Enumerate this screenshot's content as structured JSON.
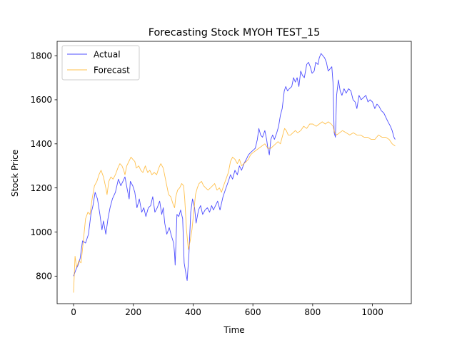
{
  "chart_data": {
    "type": "line",
    "title": "Forecasting Stock MYOH TEST_15",
    "xlabel": "Time",
    "ylabel": "Stock Price",
    "xlim": [
      -55,
      1130
    ],
    "ylim": [
      675,
      1865
    ],
    "xticks": [
      0,
      200,
      400,
      600,
      800,
      1000
    ],
    "yticks": [
      800,
      1000,
      1200,
      1400,
      1600,
      1800
    ],
    "grid": false,
    "legend": "upper left",
    "series": [
      {
        "name": "Actual",
        "color": "#0000ff",
        "points": [
          [
            0,
            800
          ],
          [
            8,
            830
          ],
          [
            15,
            850
          ],
          [
            22,
            880
          ],
          [
            30,
            960
          ],
          [
            40,
            950
          ],
          [
            50,
            990
          ],
          [
            58,
            1080
          ],
          [
            65,
            1120
          ],
          [
            72,
            1180
          ],
          [
            80,
            1150
          ],
          [
            88,
            1080
          ],
          [
            95,
            1010
          ],
          [
            100,
            1050
          ],
          [
            108,
            990
          ],
          [
            115,
            1060
          ],
          [
            122,
            1110
          ],
          [
            130,
            1150
          ],
          [
            140,
            1180
          ],
          [
            150,
            1240
          ],
          [
            158,
            1210
          ],
          [
            165,
            1230
          ],
          [
            172,
            1250
          ],
          [
            180,
            1190
          ],
          [
            186,
            1150
          ],
          [
            190,
            1230
          ],
          [
            198,
            1210
          ],
          [
            205,
            1180
          ],
          [
            212,
            1110
          ],
          [
            220,
            1150
          ],
          [
            228,
            1090
          ],
          [
            235,
            1110
          ],
          [
            242,
            1070
          ],
          [
            250,
            1110
          ],
          [
            258,
            1120
          ],
          [
            265,
            1160
          ],
          [
            272,
            1090
          ],
          [
            280,
            1110
          ],
          [
            288,
            1140
          ],
          [
            295,
            1080
          ],
          [
            300,
            1110
          ],
          [
            305,
            1040
          ],
          [
            312,
            990
          ],
          [
            320,
            1020
          ],
          [
            328,
            980
          ],
          [
            335,
            950
          ],
          [
            338,
            900
          ],
          [
            340,
            850
          ],
          [
            346,
            1080
          ],
          [
            352,
            1070
          ],
          [
            358,
            1100
          ],
          [
            365,
            1060
          ],
          [
            370,
            860
          ],
          [
            376,
            810
          ],
          [
            380,
            780
          ],
          [
            386,
            900
          ],
          [
            392,
            1090
          ],
          [
            398,
            1150
          ],
          [
            405,
            1110
          ],
          [
            410,
            1040
          ],
          [
            418,
            1100
          ],
          [
            425,
            1120
          ],
          [
            432,
            1080
          ],
          [
            440,
            1100
          ],
          [
            448,
            1110
          ],
          [
            455,
            1090
          ],
          [
            462,
            1120
          ],
          [
            468,
            1100
          ],
          [
            475,
            1120
          ],
          [
            482,
            1140
          ],
          [
            490,
            1100
          ],
          [
            500,
            1160
          ],
          [
            510,
            1200
          ],
          [
            518,
            1230
          ],
          [
            525,
            1260
          ],
          [
            532,
            1240
          ],
          [
            540,
            1280
          ],
          [
            548,
            1260
          ],
          [
            555,
            1300
          ],
          [
            562,
            1280
          ],
          [
            570,
            1310
          ],
          [
            578,
            1330
          ],
          [
            585,
            1350
          ],
          [
            592,
            1360
          ],
          [
            600,
            1370
          ],
          [
            608,
            1380
          ],
          [
            615,
            1420
          ],
          [
            620,
            1470
          ],
          [
            626,
            1440
          ],
          [
            632,
            1430
          ],
          [
            640,
            1460
          ],
          [
            646,
            1420
          ],
          [
            650,
            1380
          ],
          [
            655,
            1350
          ],
          [
            660,
            1420
          ],
          [
            666,
            1440
          ],
          [
            672,
            1420
          ],
          [
            680,
            1450
          ],
          [
            686,
            1480
          ],
          [
            692,
            1530
          ],
          [
            698,
            1560
          ],
          [
            705,
            1640
          ],
          [
            710,
            1660
          ],
          [
            716,
            1640
          ],
          [
            722,
            1650
          ],
          [
            730,
            1660
          ],
          [
            736,
            1700
          ],
          [
            742,
            1680
          ],
          [
            748,
            1700
          ],
          [
            754,
            1660
          ],
          [
            760,
            1730
          ],
          [
            766,
            1710
          ],
          [
            772,
            1700
          ],
          [
            780,
            1760
          ],
          [
            786,
            1770
          ],
          [
            792,
            1750
          ],
          [
            798,
            1720
          ],
          [
            805,
            1730
          ],
          [
            810,
            1770
          ],
          [
            818,
            1760
          ],
          [
            822,
            1790
          ],
          [
            828,
            1810
          ],
          [
            834,
            1800
          ],
          [
            840,
            1790
          ],
          [
            846,
            1770
          ],
          [
            852,
            1730
          ],
          [
            858,
            1740
          ],
          [
            864,
            1750
          ],
          [
            868,
            1680
          ],
          [
            872,
            1450
          ],
          [
            876,
            1430
          ],
          [
            880,
            1620
          ],
          [
            886,
            1690
          ],
          [
            892,
            1640
          ],
          [
            898,
            1620
          ],
          [
            905,
            1650
          ],
          [
            912,
            1630
          ],
          [
            920,
            1650
          ],
          [
            928,
            1640
          ],
          [
            935,
            1600
          ],
          [
            942,
            1590
          ],
          [
            948,
            1560
          ],
          [
            955,
            1620
          ],
          [
            962,
            1600
          ],
          [
            970,
            1610
          ],
          [
            978,
            1620
          ],
          [
            985,
            1590
          ],
          [
            992,
            1600
          ],
          [
            1000,
            1590
          ],
          [
            1008,
            1560
          ],
          [
            1015,
            1580
          ],
          [
            1022,
            1570
          ],
          [
            1030,
            1550
          ],
          [
            1038,
            1540
          ],
          [
            1045,
            1520
          ],
          [
            1052,
            1500
          ],
          [
            1060,
            1480
          ],
          [
            1066,
            1460
          ],
          [
            1072,
            1430
          ],
          [
            1076,
            1420
          ]
        ]
      },
      {
        "name": "Forecast",
        "color": "#ffa500",
        "points": [
          [
            0,
            725
          ],
          [
            5,
            890
          ],
          [
            10,
            840
          ],
          [
            18,
            870
          ],
          [
            25,
            860
          ],
          [
            32,
            950
          ],
          [
            40,
            1060
          ],
          [
            48,
            1090
          ],
          [
            55,
            1080
          ],
          [
            62,
            1150
          ],
          [
            70,
            1210
          ],
          [
            78,
            1230
          ],
          [
            85,
            1260
          ],
          [
            92,
            1280
          ],
          [
            100,
            1250
          ],
          [
            108,
            1200
          ],
          [
            112,
            1170
          ],
          [
            118,
            1230
          ],
          [
            125,
            1250
          ],
          [
            132,
            1240
          ],
          [
            140,
            1260
          ],
          [
            148,
            1290
          ],
          [
            155,
            1310
          ],
          [
            162,
            1300
          ],
          [
            168,
            1280
          ],
          [
            172,
            1260
          ],
          [
            178,
            1300
          ],
          [
            185,
            1320
          ],
          [
            192,
            1340
          ],
          [
            198,
            1330
          ],
          [
            205,
            1320
          ],
          [
            210,
            1290
          ],
          [
            218,
            1300
          ],
          [
            225,
            1280
          ],
          [
            232,
            1270
          ],
          [
            240,
            1300
          ],
          [
            248,
            1270
          ],
          [
            255,
            1280
          ],
          [
            262,
            1260
          ],
          [
            270,
            1270
          ],
          [
            278,
            1260
          ],
          [
            285,
            1290
          ],
          [
            292,
            1310
          ],
          [
            300,
            1290
          ],
          [
            306,
            1250
          ],
          [
            312,
            1210
          ],
          [
            318,
            1170
          ],
          [
            325,
            1160
          ],
          [
            332,
            1130
          ],
          [
            338,
            1110
          ],
          [
            342,
            1160
          ],
          [
            348,
            1190
          ],
          [
            355,
            1200
          ],
          [
            362,
            1220
          ],
          [
            368,
            1210
          ],
          [
            372,
            1150
          ],
          [
            378,
            1010
          ],
          [
            384,
            920
          ],
          [
            390,
            960
          ],
          [
            396,
            1010
          ],
          [
            402,
            1090
          ],
          [
            408,
            1170
          ],
          [
            414,
            1200
          ],
          [
            420,
            1220
          ],
          [
            428,
            1230
          ],
          [
            435,
            1210
          ],
          [
            442,
            1200
          ],
          [
            450,
            1190
          ],
          [
            458,
            1200
          ],
          [
            465,
            1210
          ],
          [
            472,
            1220
          ],
          [
            480,
            1190
          ],
          [
            488,
            1200
          ],
          [
            495,
            1180
          ],
          [
            502,
            1210
          ],
          [
            510,
            1240
          ],
          [
            518,
            1270
          ],
          [
            525,
            1320
          ],
          [
            532,
            1340
          ],
          [
            540,
            1330
          ],
          [
            548,
            1310
          ],
          [
            555,
            1330
          ],
          [
            562,
            1300
          ],
          [
            570,
            1310
          ],
          [
            578,
            1320
          ],
          [
            585,
            1330
          ],
          [
            592,
            1350
          ],
          [
            600,
            1360
          ],
          [
            610,
            1370
          ],
          [
            620,
            1380
          ],
          [
            630,
            1390
          ],
          [
            640,
            1400
          ],
          [
            650,
            1380
          ],
          [
            660,
            1380
          ],
          [
            668,
            1390
          ],
          [
            676,
            1400
          ],
          [
            684,
            1410
          ],
          [
            692,
            1400
          ],
          [
            700,
            1440
          ],
          [
            706,
            1470
          ],
          [
            712,
            1460
          ],
          [
            718,
            1440
          ],
          [
            726,
            1440
          ],
          [
            734,
            1450
          ],
          [
            742,
            1460
          ],
          [
            750,
            1450
          ],
          [
            760,
            1460
          ],
          [
            770,
            1480
          ],
          [
            780,
            1470
          ],
          [
            790,
            1490
          ],
          [
            800,
            1490
          ],
          [
            812,
            1480
          ],
          [
            822,
            1490
          ],
          [
            832,
            1500
          ],
          [
            842,
            1490
          ],
          [
            852,
            1500
          ],
          [
            862,
            1490
          ],
          [
            868,
            1480
          ],
          [
            874,
            1450
          ],
          [
            880,
            1440
          ],
          [
            890,
            1450
          ],
          [
            900,
            1460
          ],
          [
            912,
            1450
          ],
          [
            924,
            1440
          ],
          [
            936,
            1450
          ],
          [
            948,
            1440
          ],
          [
            960,
            1440
          ],
          [
            972,
            1430
          ],
          [
            984,
            1430
          ],
          [
            996,
            1420
          ],
          [
            1008,
            1420
          ],
          [
            1020,
            1440
          ],
          [
            1032,
            1430
          ],
          [
            1044,
            1430
          ],
          [
            1056,
            1420
          ],
          [
            1066,
            1400
          ],
          [
            1076,
            1390
          ]
        ]
      }
    ]
  }
}
